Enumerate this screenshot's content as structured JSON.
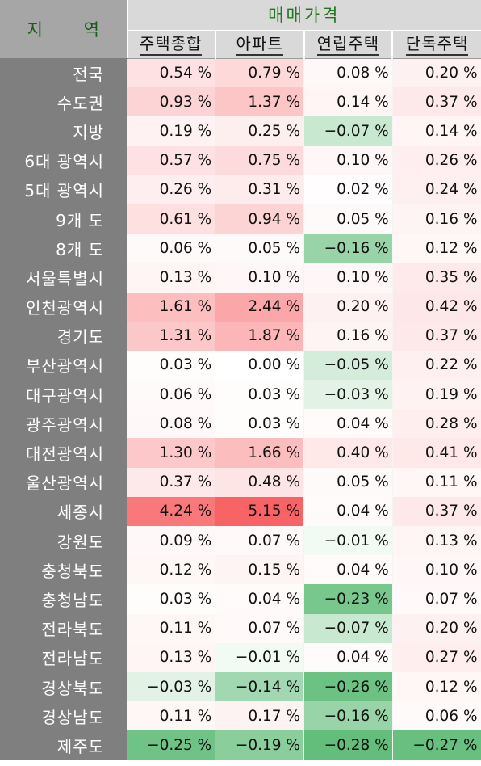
{
  "header": {
    "region_label": "지  역",
    "group_label": "매매가격",
    "columns": [
      "주택종합",
      "아파트",
      "연립주택",
      "단독주택"
    ]
  },
  "unit_suffix": " %",
  "colors": {
    "label_bg": "#7f7f7f",
    "header_bg": "#d9d9d9",
    "header_green_text": "#1f7a1f",
    "positive_max": "#f86466",
    "negative_max": "#63be7b",
    "neutral": "#ffffff"
  },
  "chart_data": {
    "type": "heatmap",
    "title": "매매가격",
    "columns": [
      "주택종합",
      "아파트",
      "연립주택",
      "단독주택"
    ],
    "unit": "%",
    "rows": [
      {
        "region": "전국",
        "values": [
          0.54,
          0.79,
          0.08,
          0.2
        ]
      },
      {
        "region": "수도권",
        "values": [
          0.93,
          1.37,
          0.14,
          0.37
        ]
      },
      {
        "region": "지방",
        "values": [
          0.19,
          0.25,
          -0.07,
          0.14
        ]
      },
      {
        "region": "6대 광역시",
        "values": [
          0.57,
          0.75,
          0.1,
          0.26
        ]
      },
      {
        "region": "5대 광역시",
        "values": [
          0.26,
          0.31,
          0.02,
          0.24
        ]
      },
      {
        "region": "9개 도",
        "values": [
          0.61,
          0.94,
          0.05,
          0.16
        ]
      },
      {
        "region": "8개 도",
        "values": [
          0.06,
          0.05,
          -0.16,
          0.12
        ]
      },
      {
        "region": "서울특별시",
        "values": [
          0.13,
          0.1,
          0.1,
          0.35
        ]
      },
      {
        "region": "인천광역시",
        "values": [
          1.61,
          2.44,
          0.2,
          0.42
        ]
      },
      {
        "region": "경기도",
        "values": [
          1.31,
          1.87,
          0.16,
          0.37
        ]
      },
      {
        "region": "부산광역시",
        "values": [
          0.03,
          0.0,
          -0.05,
          0.22
        ]
      },
      {
        "region": "대구광역시",
        "values": [
          0.06,
          0.03,
          -0.03,
          0.19
        ]
      },
      {
        "region": "광주광역시",
        "values": [
          0.08,
          0.03,
          0.04,
          0.28
        ]
      },
      {
        "region": "대전광역시",
        "values": [
          1.3,
          1.66,
          0.4,
          0.41
        ]
      },
      {
        "region": "울산광역시",
        "values": [
          0.37,
          0.48,
          0.05,
          0.11
        ]
      },
      {
        "region": "세종시",
        "values": [
          4.24,
          5.15,
          0.04,
          0.37
        ]
      },
      {
        "region": "강원도",
        "values": [
          0.09,
          0.07,
          -0.01,
          0.13
        ]
      },
      {
        "region": "충청북도",
        "values": [
          0.12,
          0.15,
          0.04,
          0.1
        ]
      },
      {
        "region": "충청남도",
        "values": [
          0.03,
          0.04,
          -0.23,
          0.07
        ]
      },
      {
        "region": "전라북도",
        "values": [
          0.11,
          0.07,
          -0.07,
          0.2
        ]
      },
      {
        "region": "전라남도",
        "values": [
          0.13,
          -0.01,
          0.04,
          0.27
        ]
      },
      {
        "region": "경상북도",
        "values": [
          -0.03,
          -0.14,
          -0.26,
          0.12
        ]
      },
      {
        "region": "경상남도",
        "values": [
          0.11,
          0.17,
          -0.16,
          0.06
        ]
      },
      {
        "region": "제주도",
        "values": [
          -0.25,
          -0.19,
          -0.28,
          -0.27
        ]
      }
    ]
  }
}
